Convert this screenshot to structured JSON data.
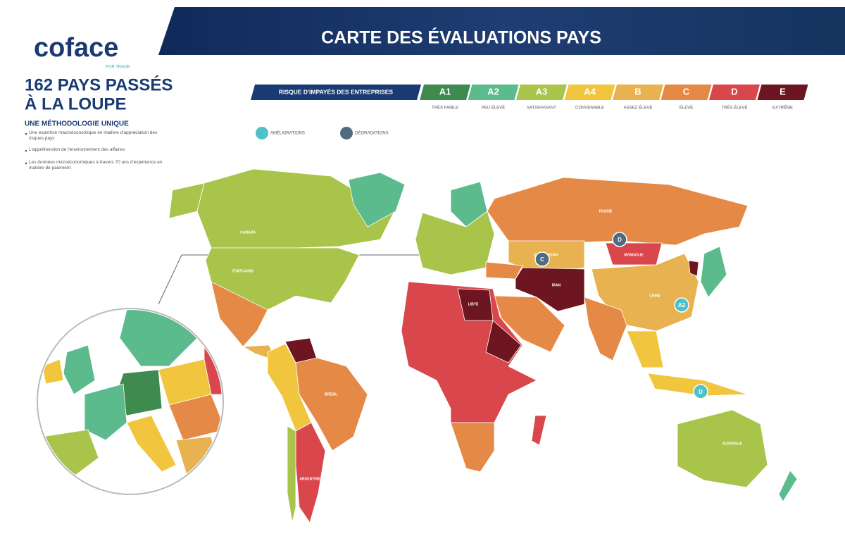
{
  "header": {
    "logo": "coface",
    "tagline": "FOR TRADE",
    "title": "CARTE DES ÉVALUATIONS PAYS"
  },
  "intro": {
    "heading_lines": [
      "162 PAYS PASSÉS",
      "À LA LOUPE"
    ],
    "subheading": "UNE MÉTHODOLOGIE UNIQUE",
    "bullets": [
      "Une expertise macroéconomique en matière d'appréciation des risques pays",
      "L'appréhension de l'environnement des affaires",
      "Les données microéconomiques à travers 70 ans d'expérience en matière de paiement"
    ]
  },
  "legend": {
    "title": "RISQUE D'IMPAYÉS DES ENTREPRISES",
    "grades": [
      {
        "grade": "A1",
        "label": "TRÈS FAIBLE",
        "color": "#3f8a4f"
      },
      {
        "grade": "A2",
        "label": "PEU ÉLEVÉ",
        "color": "#5cbb8d"
      },
      {
        "grade": "A3",
        "label": "SATISFAISANT",
        "color": "#a8c44b"
      },
      {
        "grade": "A4",
        "label": "CONVENABLE",
        "color": "#f1c63e"
      },
      {
        "grade": "B",
        "label": "ASSEZ ÉLEVÉ",
        "color": "#e8b250"
      },
      {
        "grade": "C",
        "label": "ÉLEVÉ",
        "color": "#e58a46"
      },
      {
        "grade": "D",
        "label": "TRÈS ÉLEVÉ",
        "color": "#d9464b"
      },
      {
        "grade": "E",
        "label": "EXTRÊME",
        "color": "#6d1520"
      }
    ],
    "markers": [
      {
        "label": "AMÉLIORATIONS",
        "color": "#4fc1c9"
      },
      {
        "label": "DÉGRADATIONS",
        "color": "#4e6b80"
      }
    ]
  },
  "map": {
    "country_labels": [
      "CANADA",
      "ÉTATS-UNIS",
      "RUSSIE",
      "KAZAKHSTAN",
      "MONGOLIE",
      "CHINE",
      "BRÉSIL",
      "ARGENTINE",
      "AUSTRALIE",
      "LIBYE",
      "IRAN"
    ],
    "badges": [
      {
        "text": "C",
        "marker": 1
      },
      {
        "text": "D",
        "marker": 1
      },
      {
        "text": "A2",
        "marker": 0
      },
      {
        "text": "D",
        "marker": 0
      }
    ]
  }
}
